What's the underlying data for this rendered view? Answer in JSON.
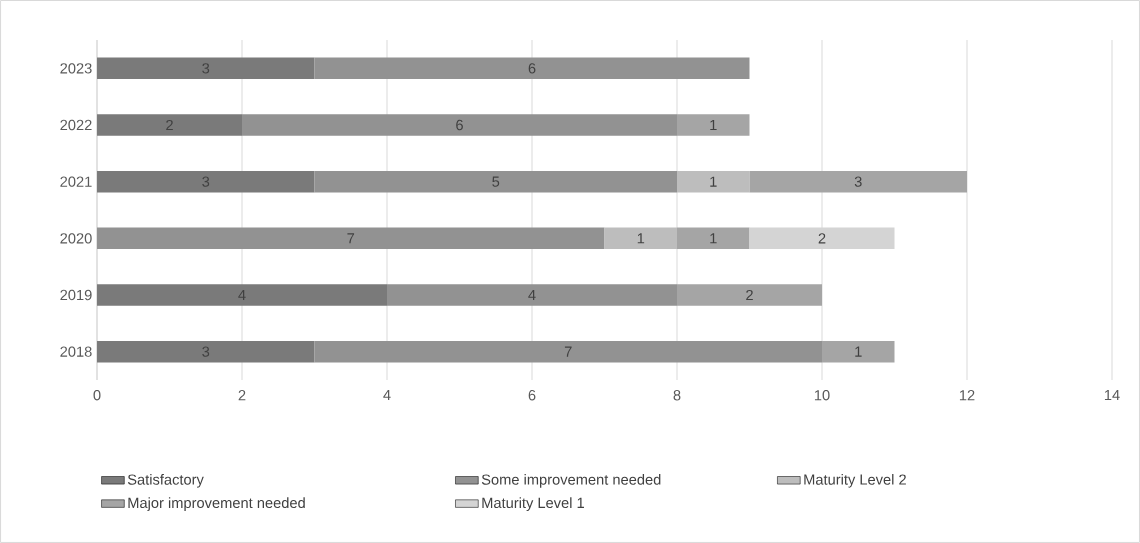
{
  "chart_data": {
    "type": "bar",
    "orientation": "horizontal",
    "stacked": true,
    "data_labels": true,
    "grid": "x",
    "legend": "bottom",
    "categories": [
      "2023",
      "2022",
      "2021",
      "2020",
      "2019",
      "2018"
    ],
    "series": [
      {
        "name": "Satisfactory",
        "color": "#7a7a7a",
        "values": [
          3,
          2,
          3,
          null,
          4,
          3
        ]
      },
      {
        "name": "Some improvement needed",
        "color": "#929292",
        "values": [
          6,
          6,
          5,
          7,
          4,
          7
        ]
      },
      {
        "name": "Maturity Level 2",
        "color": "#bdbdbd",
        "values": [
          null,
          null,
          1,
          1,
          null,
          null
        ]
      },
      {
        "name": "Major improvement needed",
        "color": "#a5a5a5",
        "values": [
          null,
          1,
          3,
          1,
          2,
          1
        ]
      },
      {
        "name": "Maturity Level 1",
        "color": "#d4d4d4",
        "values": [
          null,
          null,
          null,
          2,
          null,
          null
        ]
      }
    ],
    "xlim": [
      0,
      14
    ],
    "xticks": [
      0,
      2,
      4,
      6,
      8,
      10,
      12,
      14
    ]
  }
}
